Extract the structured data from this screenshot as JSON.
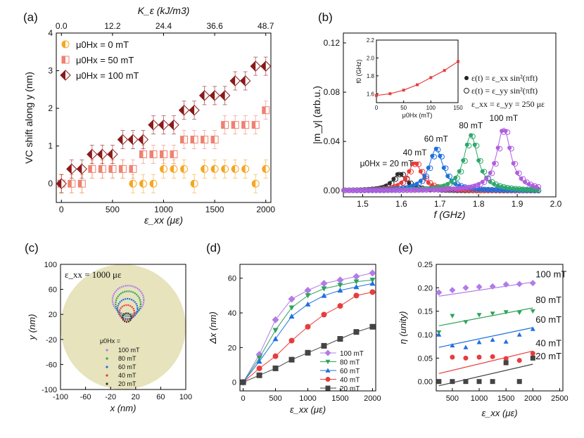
{
  "colors": {
    "orange": "#f5a623",
    "salmon": "#f08070",
    "darkred": "#8b1a1a",
    "black": "#2d2d2d",
    "red": "#e83c3c",
    "blue": "#1f6fe0",
    "green": "#2ea35a",
    "purple": "#b05de0",
    "lavender": "#b07ce8",
    "teal": "#2fa86b",
    "bg": "#e6e3bd"
  },
  "chart_data": [
    {
      "panel": "(a)",
      "type": "scatter",
      "xlabel": "ε_xx (με)",
      "ylabel": "VC shift along y (nm)",
      "top_axis_label": "K_ε (kJ/m3)",
      "top_ticks": [
        "0.0",
        "12.2",
        "24.4",
        "36.6",
        "48.7"
      ],
      "xlim": [
        -50,
        2050
      ],
      "ylim": [
        -0.5,
        4
      ],
      "xticks": [
        "0",
        "500",
        "1000",
        "1500",
        "2000"
      ],
      "yticks": [
        "0",
        "1",
        "2",
        "3",
        "4"
      ],
      "x": [
        0,
        100,
        200,
        300,
        400,
        500,
        600,
        700,
        800,
        900,
        1000,
        1100,
        1200,
        1300,
        1400,
        1500,
        1600,
        1700,
        1800,
        1900,
        2000
      ],
      "series": [
        {
          "name": "μ0Hx = 0 mT",
          "values": [
            0,
            0,
            0,
            0.39,
            0.39,
            0.39,
            0.39,
            0,
            0,
            0,
            0.39,
            0.39,
            0.39,
            0,
            0.39,
            0.39,
            0.39,
            0.39,
            0.39,
            0,
            0.39
          ]
        },
        {
          "name": "μ0Hx = 50 mT",
          "values": [
            0,
            0,
            0,
            0.39,
            0.39,
            0.39,
            0.39,
            0.39,
            0.78,
            0.78,
            0.78,
            0.78,
            1.17,
            1.17,
            1.17,
            1.17,
            1.56,
            1.56,
            1.56,
            1.56,
            1.95
          ]
        },
        {
          "name": "μ0Hx = 100 mT",
          "values": [
            0,
            0.39,
            0.39,
            0.78,
            0.78,
            0.78,
            1.17,
            1.17,
            1.17,
            1.56,
            1.56,
            1.56,
            1.95,
            1.95,
            2.34,
            2.34,
            2.34,
            2.73,
            2.73,
            3.12,
            3.12
          ]
        }
      ]
    },
    {
      "panel": "(b)",
      "type": "line",
      "xlabel": "f (GHz)",
      "ylabel": "|m_y| (arb.u.)",
      "xlim": [
        1.45,
        2.0
      ],
      "ylim": [
        -0.005,
        0.128
      ],
      "xticks": [
        "1.5",
        "1.6",
        "1.7",
        "1.8",
        "1.9",
        "2.0"
      ],
      "yticks": [
        "0.00",
        "0.04",
        "0.08",
        "0.12"
      ],
      "series": [
        {
          "name": "20 mT",
          "peak_f": 1.595,
          "peak": 0.014,
          "label": "μ0Hx = 20 mT"
        },
        {
          "name": "40 mT",
          "peak_f": 1.635,
          "peak": 0.023,
          "label": "40 mT"
        },
        {
          "name": "60 mT",
          "peak_f": 1.69,
          "peak": 0.034,
          "label": "60 mT"
        },
        {
          "name": "80 mT",
          "peak_f": 1.78,
          "peak": 0.045,
          "label": "80 mT"
        },
        {
          "name": "100 mT",
          "peak_f": 1.865,
          "peak": 0.051,
          "label": "100 mT"
        }
      ],
      "legend": {
        "filled": "ε(t) = ε_xx sin²(πft)",
        "open": "ε(t) = ε_yy sin²(πft)",
        "eq": "ε_xx = ε_yy = 250 με"
      },
      "inset": {
        "xlabel": "μ0Hx (mT)",
        "ylabel": "f0 (GHz)",
        "xlim": [
          0,
          150
        ],
        "ylim": [
          1.5,
          2.2
        ],
        "xticks": [
          "0",
          "50",
          "100",
          "150"
        ],
        "yticks": [
          "1.6",
          "1.8",
          "2.0",
          "2.2"
        ],
        "x": [
          0,
          25,
          50,
          75,
          100,
          125,
          150
        ],
        "values": [
          1.58,
          1.6,
          1.64,
          1.7,
          1.78,
          1.86,
          1.96
        ]
      }
    },
    {
      "panel": "(c)",
      "type": "scatter",
      "xlabel": "x (nm)",
      "ylabel": "y (nm)",
      "xlim": [
        -100,
        100
      ],
      "ylim": [
        -100,
        100
      ],
      "xticks": [
        "-100",
        "-60",
        "-20",
        "20",
        "60",
        "100"
      ],
      "yticks": [
        "-100",
        "-60",
        "-20",
        "20",
        "60",
        "100"
      ],
      "annotation": "ε_xx = 1000 με",
      "legend_title": "μ0Hx =",
      "orbits": [
        {
          "name": "100 mT",
          "cx": 8,
          "cy": 43,
          "rx": 25,
          "ry": 23
        },
        {
          "name": "80 mT",
          "cx": 8,
          "cy": 37,
          "rx": 20,
          "ry": 20
        },
        {
          "name": "60 mT",
          "cx": 7,
          "cy": 29,
          "rx": 16,
          "ry": 16
        },
        {
          "name": "40 mT",
          "cx": 6,
          "cy": 23,
          "rx": 12,
          "ry": 12
        },
        {
          "name": "20 mT",
          "cx": 6,
          "cy": 15,
          "rx": 7,
          "ry": 7
        }
      ]
    },
    {
      "panel": "(d)",
      "type": "line",
      "xlabel": "ε_xx (με)",
      "ylabel": "Δx (nm)",
      "xlim": [
        -50,
        2050
      ],
      "ylim": [
        -5,
        68
      ],
      "xticks": [
        "0",
        "500",
        "1000",
        "1500",
        "2000"
      ],
      "yticks": [
        "0",
        "20",
        "40",
        "60"
      ],
      "x": [
        0,
        250,
        500,
        750,
        1000,
        1250,
        1500,
        1750,
        2000
      ],
      "series": [
        {
          "name": "100 mT",
          "values": [
            0,
            16,
            36,
            48,
            53,
            57,
            59,
            61,
            63
          ]
        },
        {
          "name": "80 mT",
          "values": [
            0,
            14,
            30,
            43,
            50,
            54,
            56,
            58,
            59
          ]
        },
        {
          "name": "60 mT",
          "values": [
            0,
            12,
            25,
            38,
            45,
            50,
            53,
            55,
            57
          ]
        },
        {
          "name": "40 mT",
          "values": [
            0,
            8,
            15,
            24,
            32,
            39,
            44,
            50,
            52
          ]
        },
        {
          "name": "20 mT",
          "values": [
            0,
            4,
            8,
            13,
            17,
            21,
            25,
            29,
            32
          ]
        }
      ]
    },
    {
      "panel": "(e)",
      "type": "scatter",
      "xlabel": "ε_xx (με)",
      "ylabel": "η (unity)",
      "xlim": [
        200,
        2560
      ],
      "ylim": [
        -0.02,
        0.25
      ],
      "xticks": [
        "500",
        "1000",
        "1500",
        "2000",
        "2500"
      ],
      "yticks": [
        "0.00",
        "0.05",
        "0.10",
        "0.15",
        "0.20",
        "0.25"
      ],
      "x": [
        250,
        500,
        750,
        1000,
        1250,
        1500,
        1750,
        2000
      ],
      "series": [
        {
          "name": "100 mT",
          "values": [
            0.19,
            0.195,
            0.2,
            0.202,
            0.203,
            0.207,
            0.208,
            0.21
          ],
          "fit": [
            0.182,
            0.212
          ]
        },
        {
          "name": "80 mT",
          "values": [
            0.105,
            0.14,
            0.127,
            0.142,
            0.145,
            0.148,
            0.147,
            0.15
          ],
          "fit": [
            0.119,
            0.157
          ]
        },
        {
          "name": "60 mT",
          "values": [
            0.1,
            0.077,
            0.073,
            0.084,
            0.089,
            0.085,
            0.1,
            0.112
          ],
          "fit": [
            0.073,
            0.115
          ]
        },
        {
          "name": "40 mT",
          "values": [
            0.0,
            0.052,
            0.05,
            0.052,
            0.053,
            0.049,
            0.045,
            0.06
          ],
          "fit": [
            0.017,
            0.065
          ]
        },
        {
          "name": "20 mT",
          "values": [
            0.0,
            0.0,
            0.0,
            0.0,
            0.0,
            0.04,
            0.0,
            0.05
          ],
          "fit": [
            -0.009,
            0.037
          ]
        }
      ]
    }
  ]
}
